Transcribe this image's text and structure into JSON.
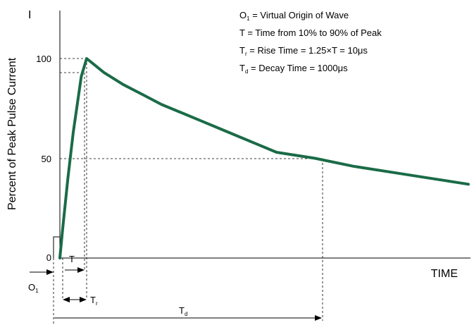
{
  "chart_data": {
    "type": "line",
    "ylabel": "Percent of Peak Pulse Current",
    "yaxis_marker": "I",
    "xlabel": "TIME",
    "yticks": [
      0,
      50,
      100
    ],
    "ylim": [
      0,
      100
    ],
    "xlim": [
      0,
      2000
    ],
    "grid": false,
    "series": [
      {
        "color": "#1a6b47",
        "x": [
          0,
          1,
          3,
          5,
          8,
          10,
          100,
          200,
          300,
          400,
          500,
          600,
          700,
          800,
          900,
          1000,
          1200,
          1400,
          1600,
          1800,
          2000
        ],
        "y": [
          0,
          14,
          40,
          63,
          91,
          100,
          93,
          87,
          82,
          77,
          73,
          69,
          65,
          61,
          57,
          53,
          50,
          46,
          43,
          40,
          37
        ]
      }
    ],
    "legend_lines": [
      {
        "main": "O",
        "sub": "1",
        "rest": " = Virtual Origin of Wave"
      },
      {
        "main": "T",
        "sub": "",
        "rest": " = Time from 10% to 90% of Peak"
      },
      {
        "main": "T",
        "sub": "r",
        "rest": " = Rise Time = 1.25×T = 10μs"
      },
      {
        "main": "T",
        "sub": "d",
        "rest": " = Decay Time = 1000μs"
      }
    ],
    "annotations": {
      "o1": {
        "main": "O",
        "sub": "1"
      },
      "t": {
        "main": "T"
      },
      "tr": {
        "main": "T",
        "sub": "r"
      },
      "td": {
        "main": "T",
        "sub": "d"
      }
    }
  }
}
